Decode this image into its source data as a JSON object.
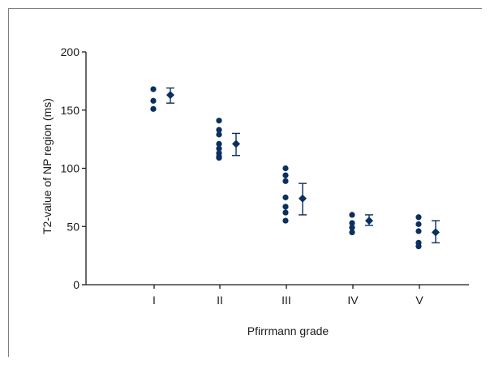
{
  "chart_data": {
    "type": "scatter",
    "xlabel": "Pfirrmann grade",
    "ylabel": "T2-value of NP region (ms)",
    "ylim": [
      0,
      200
    ],
    "y_ticks": [
      0,
      50,
      100,
      150,
      200
    ],
    "categories": [
      "I",
      "II",
      "III",
      "IV",
      "V"
    ],
    "grid": false,
    "colors": {
      "points": "#0b2f5e",
      "axis": "#1a1a1a",
      "frame": "#7f7f7f"
    },
    "groups": [
      {
        "category": "I",
        "points": [
          168,
          158,
          151
        ],
        "mean": 163,
        "error": [
          156,
          169
        ]
      },
      {
        "category": "II",
        "points": [
          141,
          133,
          129,
          121,
          117,
          113,
          109,
          110
        ],
        "mean": 121,
        "error": [
          111,
          130
        ]
      },
      {
        "category": "III",
        "points": [
          100,
          94,
          89,
          75,
          67,
          62,
          55
        ],
        "mean": 74,
        "error": [
          60,
          87
        ]
      },
      {
        "category": "IV",
        "points": [
          60,
          53,
          49,
          45
        ],
        "mean": 55,
        "error": [
          51,
          60
        ]
      },
      {
        "category": "V",
        "points": [
          58,
          52,
          46,
          36,
          33
        ],
        "mean": 45,
        "error": [
          36,
          55
        ]
      }
    ]
  }
}
